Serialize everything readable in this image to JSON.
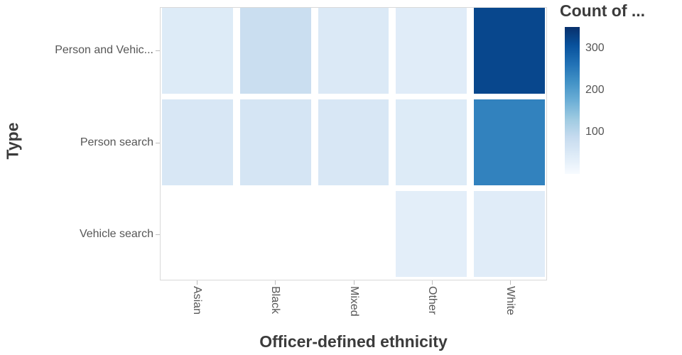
{
  "chart_data": {
    "type": "heatmap",
    "legend_title": "Count of ...",
    "xlabel": "Officer-defined ethnicity",
    "ylabel": "Type",
    "x_categories": [
      "Asian",
      "Black",
      "Mixed",
      "Other",
      "White"
    ],
    "y_categories": [
      "Person and Vehic...",
      "Person search",
      "Vehicle search"
    ],
    "values": [
      [
        45,
        80,
        50,
        40,
        320
      ],
      [
        55,
        60,
        55,
        45,
        240
      ],
      [
        null,
        null,
        null,
        35,
        40
      ]
    ],
    "color_domain": [
      0,
      350
    ],
    "color_scale": {
      "name": "Blues",
      "stops": [
        [
          0,
          "#f7fbff"
        ],
        [
          0.125,
          "#deebf7"
        ],
        [
          0.25,
          "#c6dbef"
        ],
        [
          0.375,
          "#9ecae1"
        ],
        [
          0.5,
          "#6baed6"
        ],
        [
          0.625,
          "#4292c6"
        ],
        [
          0.75,
          "#2171b5"
        ],
        [
          0.875,
          "#08519c"
        ],
        [
          1,
          "#08306b"
        ]
      ]
    },
    "legend_ticks": [
      300,
      200,
      100
    ],
    "legend_position": "right",
    "grid": false,
    "plot_border_color": "#d9d9d9"
  },
  "colors": {
    "axis_title": "#3b3b3b",
    "tick_label": "#565656",
    "tick_mark": "#bdbdbd",
    "background": "#ffffff"
  }
}
